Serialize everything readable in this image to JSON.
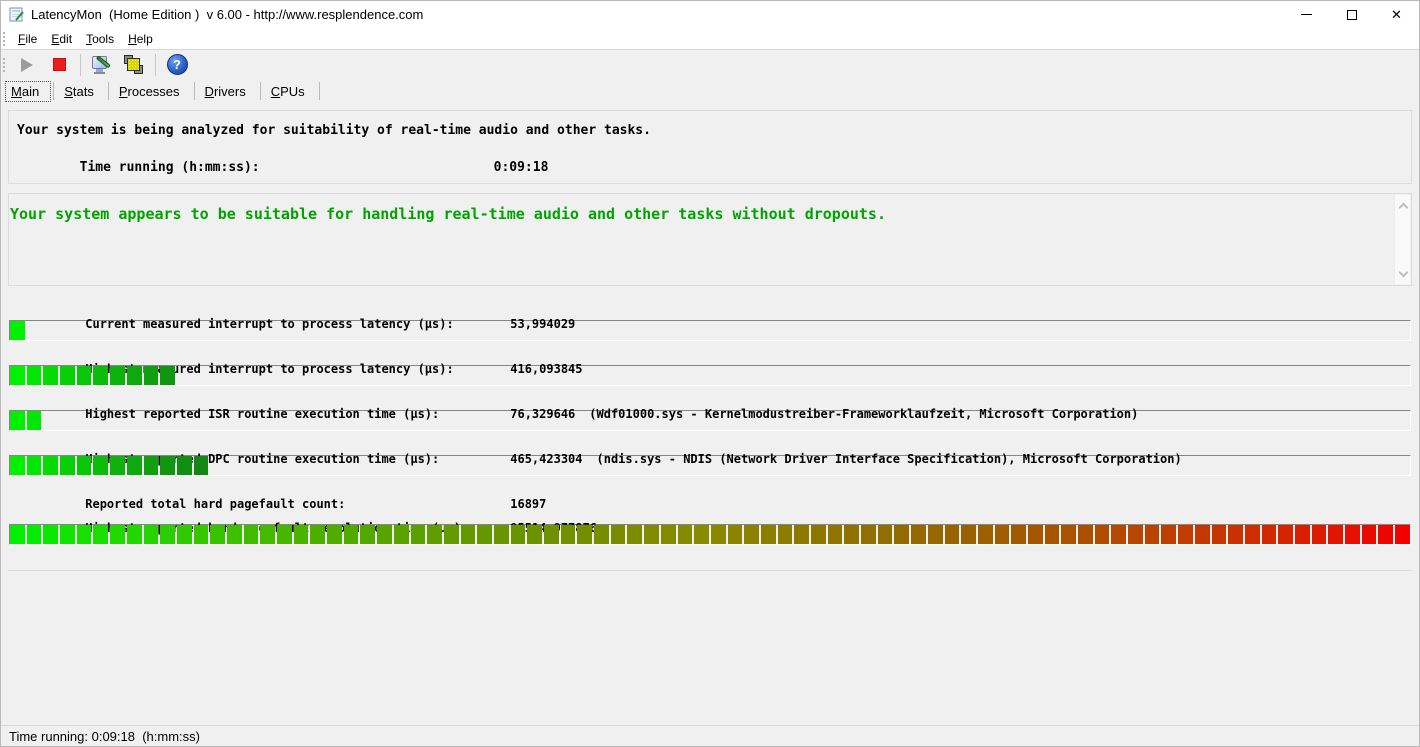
{
  "window": {
    "title": "LatencyMon  (Home Edition )  v 6.00 - http://www.resplendence.com"
  },
  "icons": {
    "close_glyph": "✕",
    "help_glyph": "?"
  },
  "menu": {
    "items": [
      {
        "label": "File"
      },
      {
        "label": "Edit"
      },
      {
        "label": "Tools"
      },
      {
        "label": "Help"
      }
    ]
  },
  "tabs": [
    {
      "label": "Main",
      "active": true
    },
    {
      "label": "Stats",
      "active": false
    },
    {
      "label": "Processes",
      "active": false
    },
    {
      "label": "Drivers",
      "active": false
    },
    {
      "label": "CPUs",
      "active": false
    }
  ],
  "monitor": {
    "line1": "Your system is being analyzed for suitability of real-time audio and other tasks.",
    "time_label": "Time running (h:mm:ss):",
    "time_value": "0:09:18"
  },
  "verdict": {
    "message": "Your system appears to be suitable for handling real-time audio and other tasks without dropouts.",
    "color": "#00a300"
  },
  "metrics": [
    {
      "label": "Current measured interrupt to process latency (µs):",
      "value": "53,994029",
      "extra": "",
      "segments": 1,
      "bar": "green"
    },
    {
      "label": "Highest measured interrupt to process latency (µs):",
      "value": "416,093845",
      "extra": "",
      "segments": 10,
      "bar": "green"
    },
    {
      "label": "Highest reported ISR routine execution time (µs):",
      "value": "76,329646",
      "extra": "(Wdf01000.sys - Kernelmodustreiber-Frameworklaufzeit, Microsoft Corporation)",
      "segments": 2,
      "bar": "green"
    },
    {
      "label": "Highest reported DPC routine execution time (µs):",
      "value": "465,423304",
      "extra": "(ndis.sys - NDIS (Network Driver Interface Specification), Microsoft Corporation)",
      "segments": 12,
      "bar": "green"
    },
    {
      "label": "Reported total hard pagefault count:",
      "value": "16897",
      "extra": "",
      "segments": 0,
      "bar": "none"
    },
    {
      "label": "Highest reported hard pagefault resolution time (µs):",
      "value": "95514,977876",
      "extra": "",
      "segments": 84,
      "bar": "gradient"
    }
  ],
  "statusbar": {
    "text": "Time running: 0:09:18  (h:mm:ss)"
  },
  "colors": {
    "bar_bright_green": "#00ee00",
    "bar_dark_green": "#1e8c1e",
    "bar_olive_mid": "#8a8a00",
    "bar_red": "#ee0000",
    "stop_button_red": "#ee1c1c",
    "help_icon_blue": "#2b62cc",
    "verdict_green": "#00a300",
    "background": "#f0f0f0"
  }
}
